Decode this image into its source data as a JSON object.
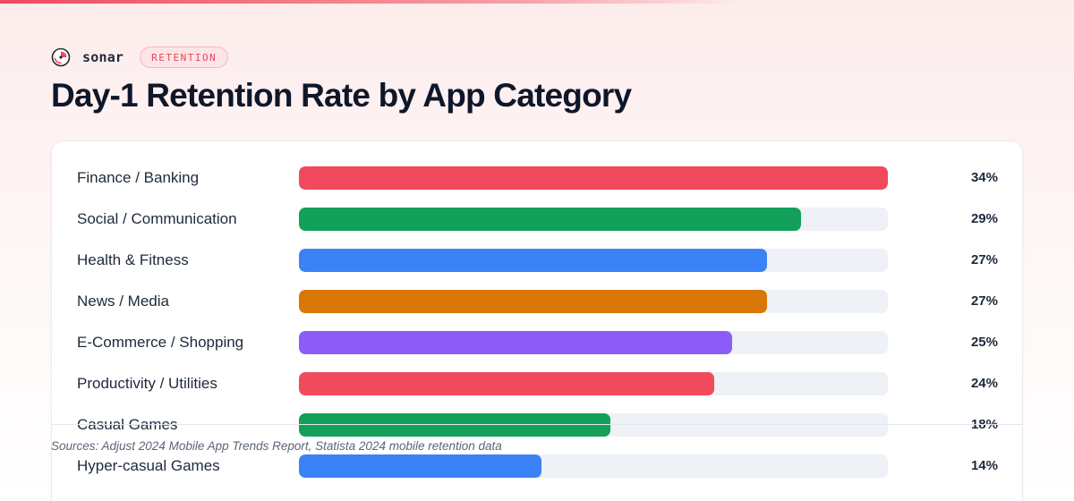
{
  "brand": {
    "name": "sonar",
    "badge": "RETENTION",
    "logo_icon": "sonar-logo-icon",
    "accent_color": "#f04a5c"
  },
  "title": "Day-1 Retention Rate by App Category",
  "source": "Sources: Adjust 2024 Mobile App Trends Report, Statista 2024 mobile retention data",
  "chart_data": {
    "type": "bar",
    "orientation": "horizontal",
    "title": "Day-1 Retention Rate by App Category",
    "categories": [
      "Finance / Banking",
      "Social / Communication",
      "Health & Fitness",
      "News / Media",
      "E-Commerce / Shopping",
      "Productivity / Utilities",
      "Casual Games",
      "Hyper-casual Games"
    ],
    "values": [
      34,
      29,
      27,
      27,
      25,
      24,
      18,
      14
    ],
    "value_labels": [
      "34%",
      "29%",
      "27%",
      "27%",
      "25%",
      "24%",
      "18%",
      "14%"
    ],
    "colors": [
      "#f04a5c",
      "#12a05a",
      "#3b82f6",
      "#d97706",
      "#8b5cf6",
      "#f04a5c",
      "#12a05a",
      "#3b82f6"
    ],
    "xlim": [
      0,
      34
    ],
    "unit": "%",
    "grid": false,
    "legend": "none"
  }
}
